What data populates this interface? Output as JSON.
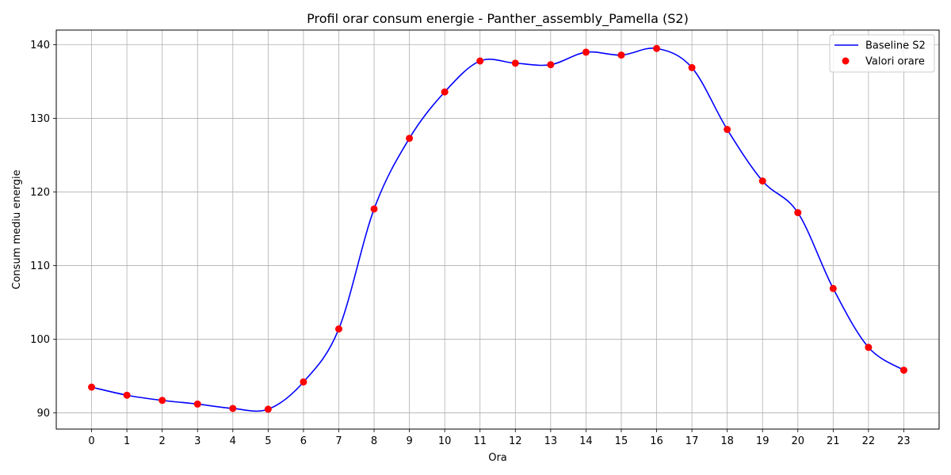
{
  "chart_data": {
    "type": "line",
    "title": "Profil orar consum energie - Panther_assembly_Pamella (S2)",
    "xlabel": "Ora",
    "ylabel": "Consum mediu energie",
    "x": [
      0,
      1,
      2,
      3,
      4,
      5,
      6,
      7,
      8,
      9,
      10,
      11,
      12,
      13,
      14,
      15,
      16,
      17,
      18,
      19,
      20,
      21,
      22,
      23
    ],
    "x_ticks": [
      "0",
      "1",
      "2",
      "3",
      "4",
      "5",
      "6",
      "7",
      "8",
      "9",
      "10",
      "11",
      "12",
      "13",
      "14",
      "15",
      "16",
      "17",
      "18",
      "19",
      "20",
      "21",
      "22",
      "23"
    ],
    "y_ticks": [
      "90",
      "100",
      "110",
      "120",
      "130",
      "140"
    ],
    "xlim": [
      -1.0,
      24.0
    ],
    "ylim": [
      87.8,
      142.0
    ],
    "grid": true,
    "legend_position": "top-right",
    "series": [
      {
        "name": "Baseline S2",
        "kind": "smooth-line",
        "color": "#0000ff",
        "values": [
          93.5,
          92.4,
          91.7,
          91.2,
          90.6,
          90.5,
          94.2,
          101.4,
          117.7,
          127.3,
          133.6,
          137.8,
          137.5,
          137.3,
          139.0,
          138.6,
          139.5,
          136.9,
          128.5,
          121.5,
          117.2,
          106.9,
          98.9,
          95.8
        ]
      },
      {
        "name": "Valori orare",
        "kind": "scatter",
        "color": "#ff0000",
        "values": [
          93.5,
          92.4,
          91.7,
          91.2,
          90.6,
          90.5,
          94.2,
          101.4,
          117.7,
          127.3,
          133.6,
          137.8,
          137.5,
          137.3,
          139.0,
          138.6,
          139.5,
          136.9,
          128.5,
          121.5,
          117.2,
          106.9,
          98.9,
          95.8
        ]
      }
    ]
  }
}
